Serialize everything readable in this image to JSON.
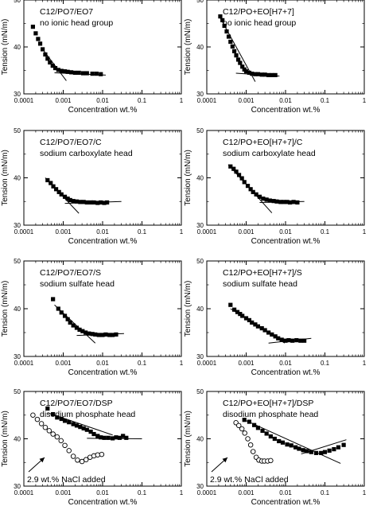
{
  "chart_data": [
    {
      "type": "scatter",
      "title": "C12/PO7/EO7",
      "subtitle": "no ionic head group",
      "xlabel": "Concentration wt.%",
      "ylabel": "Tension (mN/m)",
      "xscale": "log",
      "xlim": [
        0.0001,
        1
      ],
      "ylim": [
        30,
        50
      ],
      "xticks": [
        "0.0001",
        "0.001",
        "0.01",
        "0.1",
        "1"
      ],
      "yticks": [
        "30",
        "40",
        "50"
      ],
      "series": [
        {
          "marker": "filled-square",
          "x": [
            0.00017,
            0.0002,
            0.00023,
            0.00026,
            0.0003,
            0.00035,
            0.0004,
            0.00046,
            0.00054,
            0.00063,
            0.00075,
            0.0009,
            0.0011,
            0.0013,
            0.0016,
            0.002,
            0.0025,
            0.0032,
            0.004,
            0.0055,
            0.007,
            0.009
          ],
          "y": [
            44.3,
            42.9,
            41.7,
            40.7,
            39.5,
            38.4,
            37.5,
            36.7,
            36.0,
            35.5,
            35.1,
            34.9,
            34.8,
            34.7,
            34.6,
            34.5,
            34.5,
            34.4,
            34.4,
            34.3,
            34.3,
            34.2
          ]
        }
      ],
      "fit_lines": [
        {
          "x": [
            0.0003,
            0.0012
          ],
          "y": [
            39.5,
            32.8
          ]
        },
        {
          "x": [
            0.0006,
            0.012
          ],
          "y": [
            34.5,
            34.0
          ]
        }
      ],
      "grid": false
    },
    {
      "type": "scatter",
      "title": "C12/PO+EO[H7+7]",
      "subtitle": "no ionic head group",
      "xlabel": "Concentration wt.%",
      "ylabel": "Tension (mN/m)",
      "xscale": "log",
      "xlim": [
        0.0001,
        1
      ],
      "ylim": [
        30,
        50
      ],
      "xticks": [
        "0.0001",
        "0.001",
        "0.01",
        "0.1",
        "1"
      ],
      "yticks": [
        "30",
        "40",
        "50"
      ],
      "series": [
        {
          "marker": "filled-square",
          "x": [
            0.00022,
            0.00025,
            0.00028,
            0.00032,
            0.00036,
            0.0004,
            0.00045,
            0.0005,
            0.00056,
            0.00063,
            0.0007,
            0.0008,
            0.0009,
            0.001,
            0.0012,
            0.0014,
            0.0017,
            0.002,
            0.0025,
            0.003,
            0.0037,
            0.0045,
            0.0055
          ],
          "y": [
            46.5,
            45.7,
            44.5,
            43.3,
            42.2,
            41.1,
            40.1,
            39.1,
            38.2,
            37.3,
            36.6,
            35.8,
            35.2,
            34.8,
            34.5,
            34.3,
            34.2,
            34.2,
            34.1,
            34.1,
            34.0,
            34.0,
            34.0
          ]
        }
      ],
      "fit_lines": [
        {
          "x": [
            0.0002,
            0.0017
          ],
          "y": [
            46.8,
            32.6
          ]
        },
        {
          "x": [
            0.00055,
            0.007
          ],
          "y": [
            34.4,
            33.8
          ]
        }
      ],
      "grid": false
    },
    {
      "type": "scatter",
      "title": "C12/PO7/EO7/C",
      "subtitle": "sodium carboxylate head",
      "xlabel": "Concentration wt.%",
      "ylabel": "Tension (mN/m)",
      "xscale": "log",
      "xlim": [
        0.0001,
        1
      ],
      "ylim": [
        30,
        50
      ],
      "xticks": [
        "0.0001",
        "0.001",
        "0.01",
        "0.1",
        "1"
      ],
      "yticks": [
        "30",
        "40",
        "50"
      ],
      "series": [
        {
          "marker": "filled-square",
          "x": [
            0.0004,
            0.00048,
            0.00056,
            0.00066,
            0.00078,
            0.0009,
            0.0011,
            0.0013,
            0.0015,
            0.0018,
            0.0022,
            0.0027,
            0.0033,
            0.004,
            0.005,
            0.006,
            0.0075,
            0.009,
            0.011,
            0.013
          ],
          "y": [
            39.5,
            38.9,
            38.2,
            37.6,
            37.0,
            36.5,
            36.0,
            35.6,
            35.3,
            35.1,
            35.0,
            34.9,
            34.9,
            34.8,
            34.8,
            34.8,
            34.7,
            34.8,
            34.7,
            34.8
          ]
        }
      ],
      "fit_lines": [
        {
          "x": [
            0.00035,
            0.0025
          ],
          "y": [
            40.0,
            32.5
          ]
        },
        {
          "x": [
            0.0011,
            0.03
          ],
          "y": [
            34.6,
            35.0
          ]
        }
      ],
      "grid": false
    },
    {
      "type": "scatter",
      "title": "C12/PO+EO[H7+7]/C",
      "subtitle": "sodium carboxylate head",
      "xlabel": "Concentration wt.%",
      "ylabel": "Tension (mN/m)",
      "xscale": "log",
      "xlim": [
        0.0001,
        1
      ],
      "ylim": [
        30,
        50
      ],
      "xticks": [
        "0.0001",
        "0.001",
        "0.01",
        "0.1",
        "1"
      ],
      "yticks": [
        "30",
        "40",
        "50"
      ],
      "series": [
        {
          "marker": "filled-square",
          "x": [
            0.0004,
            0.00048,
            0.00056,
            0.00066,
            0.00078,
            0.0009,
            0.0011,
            0.0013,
            0.0015,
            0.0018,
            0.0022,
            0.0027,
            0.0033,
            0.004,
            0.005,
            0.006,
            0.0075,
            0.009,
            0.011,
            0.013,
            0.016,
            0.02
          ],
          "y": [
            42.4,
            41.9,
            41.3,
            40.6,
            39.9,
            39.1,
            38.3,
            37.6,
            37.0,
            36.5,
            36.0,
            35.6,
            35.4,
            35.2,
            35.1,
            35.0,
            34.9,
            34.9,
            34.9,
            34.8,
            34.9,
            34.8
          ]
        }
      ],
      "fit_lines": [
        {
          "x": [
            0.00035,
            0.0045
          ],
          "y": [
            42.8,
            32.6
          ]
        },
        {
          "x": [
            0.0022,
            0.03
          ],
          "y": [
            34.8,
            35.0
          ]
        }
      ],
      "grid": false
    },
    {
      "type": "scatter",
      "title": "C12/PO7/EO7/S",
      "subtitle": "sodium sulfate head",
      "xlabel": "Concentration wt.%",
      "ylabel": "Tension (mN/m)",
      "xscale": "log",
      "xlim": [
        0.0001,
        1
      ],
      "ylim": [
        30,
        50
      ],
      "xticks": [
        "0.0001",
        "0.001",
        "0.01",
        "0.1",
        "1"
      ],
      "yticks": [
        "30",
        "40",
        "50"
      ],
      "series": [
        {
          "marker": "filled-square",
          "x": [
            0.00055,
            0.00075,
            0.0009,
            0.0011,
            0.0013,
            0.0015,
            0.0018,
            0.0022,
            0.0026,
            0.0031,
            0.0037,
            0.0045,
            0.0055,
            0.0065,
            0.008,
            0.01,
            0.012,
            0.015,
            0.018,
            0.022
          ],
          "y": [
            42.0,
            40.0,
            39.2,
            38.5,
            37.8,
            37.1,
            36.5,
            36.0,
            35.6,
            35.3,
            35.0,
            34.8,
            34.7,
            34.6,
            34.5,
            34.5,
            34.6,
            34.5,
            34.5,
            34.6
          ]
        }
      ],
      "fit_lines": [
        {
          "x": [
            0.0006,
            0.0065
          ],
          "y": [
            40.8,
            32.8
          ]
        },
        {
          "x": [
            0.0022,
            0.035
          ],
          "y": [
            34.4,
            34.8
          ]
        }
      ],
      "grid": false
    },
    {
      "type": "scatter",
      "title": "C12/PO+EO[H7+7]/S",
      "subtitle": "sodium sulfate head",
      "xlabel": "Concentration wt.%",
      "ylabel": "Tension (mN/m)",
      "xscale": "log",
      "xlim": [
        0.0001,
        1
      ],
      "ylim": [
        30,
        50
      ],
      "xticks": [
        "0.0001",
        "0.001",
        "0.01",
        "0.1",
        "1"
      ],
      "yticks": [
        "30",
        "40",
        "50"
      ],
      "series": [
        {
          "marker": "filled-square",
          "x": [
            0.0004,
            0.0005,
            0.0006,
            0.0007,
            0.0008,
            0.001,
            0.0012,
            0.0014,
            0.0017,
            0.002,
            0.0025,
            0.003,
            0.0037,
            0.0045,
            0.0055,
            0.0065,
            0.008,
            0.01,
            0.012,
            0.015,
            0.019,
            0.024,
            0.03
          ],
          "y": [
            40.8,
            39.8,
            39.3,
            38.9,
            38.5,
            38.0,
            37.6,
            37.1,
            36.7,
            36.3,
            35.9,
            35.5,
            35.0,
            34.6,
            34.2,
            33.8,
            33.5,
            33.3,
            33.4,
            33.3,
            33.4,
            33.3,
            33.3
          ]
        }
      ],
      "fit_lines": [
        {
          "x": [
            0.0004,
            0.0095
          ],
          "y": [
            40.0,
            32.8
          ]
        },
        {
          "x": [
            0.0037,
            0.045
          ],
          "y": [
            32.8,
            33.8
          ]
        }
      ],
      "grid": false
    },
    {
      "type": "scatter",
      "title": "C12/PO7/EO7/DSP",
      "subtitle": "disodium phosphate head",
      "annotation": "2.9 wt.% NaCl added",
      "xlabel": "Concentration wt.%",
      "ylabel": "Tension (mN/m)",
      "xscale": "log",
      "xlim": [
        0.0001,
        1
      ],
      "ylim": [
        30,
        50
      ],
      "xticks": [
        "0.0001",
        "0.001",
        "0.01",
        "0.1",
        "1"
      ],
      "yticks": [
        "30",
        "40",
        "50"
      ],
      "series": [
        {
          "marker": "filled-square",
          "x": [
            0.0004,
            0.00055,
            0.0007,
            0.0009,
            0.0011,
            0.0014,
            0.0018,
            0.0022,
            0.0027,
            0.0033,
            0.004,
            0.005,
            0.006,
            0.0075,
            0.009,
            0.011,
            0.014,
            0.018,
            0.022,
            0.027,
            0.033,
            0.04
          ],
          "y": [
            46.4,
            45.2,
            44.5,
            44.2,
            43.8,
            43.5,
            43.1,
            42.8,
            42.5,
            42.2,
            41.9,
            41.5,
            41.0,
            40.6,
            40.3,
            40.2,
            40.2,
            40.1,
            40.3,
            40.2,
            40.6,
            40.2
          ]
        },
        {
          "marker": "open-circle",
          "x": [
            0.00017,
            0.00022,
            0.00028,
            0.00035,
            0.00044,
            0.00055,
            0.0007,
            0.00088,
            0.0011,
            0.0014,
            0.0018,
            0.0023,
            0.003,
            0.0038,
            0.0048,
            0.006,
            0.0075,
            0.0095
          ],
          "y": [
            45.0,
            44.1,
            43.2,
            42.4,
            41.7,
            41.0,
            40.4,
            39.6,
            38.6,
            37.5,
            36.3,
            35.5,
            35.2,
            35.6,
            36.1,
            36.4,
            36.6,
            36.7
          ]
        }
      ],
      "fit_lines": [
        {
          "x": [
            0.0004,
            0.018
          ],
          "y": [
            45.5,
            40.8
          ]
        },
        {
          "x": [
            0.004,
            0.1
          ],
          "y": [
            40.1,
            40.0
          ]
        }
      ],
      "grid": false
    },
    {
      "type": "scatter",
      "title": "C12/PO+EO[H7+7]/DSP",
      "subtitle": "disodium phosphate head",
      "annotation": "2.9 wt.% NaCl added",
      "xlabel": "Concentration wt.%",
      "ylabel": "Tension (mN/m)",
      "xscale": "log",
      "xlim": [
        0.0001,
        1
      ],
      "ylim": [
        30,
        50
      ],
      "xticks": [
        "0.0001",
        "0.001",
        "0.01",
        "0.1",
        "1"
      ],
      "yticks": [
        "30",
        "40",
        "50"
      ],
      "series": [
        {
          "marker": "filled-square",
          "x": [
            0.0009,
            0.0012,
            0.0016,
            0.002,
            0.0026,
            0.0033,
            0.0042,
            0.0053,
            0.0068,
            0.0085,
            0.011,
            0.014,
            0.018,
            0.022,
            0.028,
            0.035,
            0.045,
            0.06,
            0.08,
            0.1,
            0.13,
            0.17,
            0.22,
            0.3
          ],
          "y": [
            44.0,
            43.6,
            42.9,
            42.3,
            41.7,
            41.1,
            40.5,
            40.0,
            39.5,
            39.2,
            38.8,
            38.6,
            38.2,
            37.9,
            37.6,
            37.4,
            37.2,
            37.0,
            37.0,
            37.2,
            37.5,
            37.8,
            38.2,
            38.7
          ]
        },
        {
          "marker": "open-circle",
          "x": [
            0.00055,
            0.00065,
            0.00078,
            0.00092,
            0.0011,
            0.0013,
            0.0015,
            0.0018,
            0.0021,
            0.0025,
            0.0029,
            0.0035,
            0.0042
          ],
          "y": [
            43.4,
            42.8,
            42.1,
            41.2,
            40.0,
            38.7,
            37.3,
            36.1,
            35.5,
            35.3,
            35.3,
            35.3,
            35.4
          ]
        }
      ],
      "fit_lines": [
        {
          "x": [
            0.0009,
            0.25
          ],
          "y": [
            44.0,
            34.8
          ]
        },
        {
          "x": [
            0.025,
            0.35
          ],
          "y": [
            36.8,
            39.8
          ]
        }
      ],
      "grid": false
    }
  ]
}
